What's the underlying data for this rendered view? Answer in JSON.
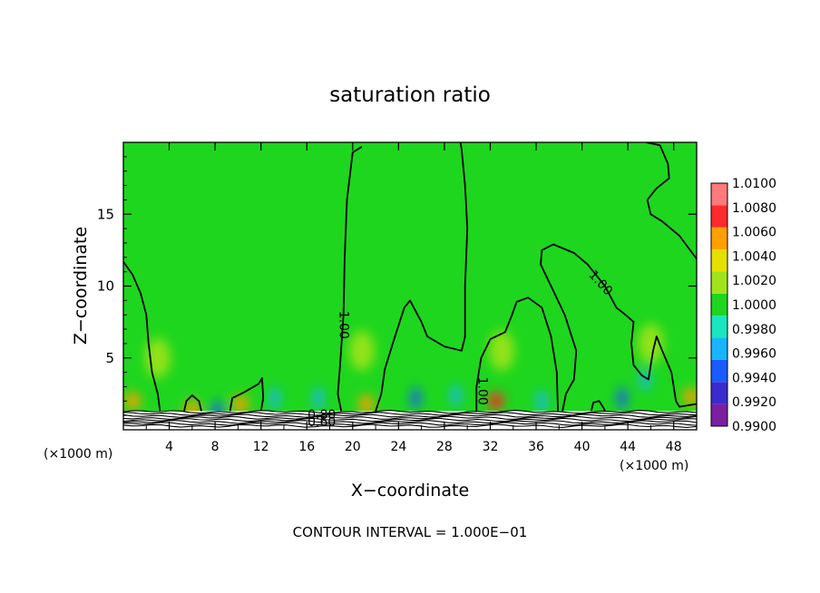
{
  "chart_data": {
    "type": "heatmap",
    "title": "saturation ratio",
    "xlabel": "X−coordinate",
    "ylabel": "Z−coordinate",
    "x_unit_left": "(×1000 m)",
    "x_unit_right": "(×1000 m)",
    "footer": "CONTOUR INTERVAL = 1.000E−01",
    "xlim": [
      0,
      50
    ],
    "ylim": [
      0,
      20
    ],
    "x_ticks": [
      4,
      8,
      12,
      16,
      20,
      24,
      28,
      32,
      36,
      40,
      44,
      48
    ],
    "x_tick_labels": [
      "4",
      "8",
      "12",
      "16",
      "20",
      "24",
      "28",
      "32",
      "36",
      "40",
      "44",
      "48"
    ],
    "y_ticks": [
      5,
      10,
      15
    ],
    "y_tick_labels": [
      "5",
      "10",
      "15"
    ],
    "colorbar": {
      "levels": [
        0.99,
        0.992,
        0.994,
        0.996,
        0.998,
        1.0,
        1.002,
        1.004,
        1.006,
        1.008,
        1.01
      ],
      "labels": [
        "0.9900",
        "0.9920",
        "0.9940",
        "0.9960",
        "0.9980",
        "1.0000",
        "1.0020",
        "1.0040",
        "1.0060",
        "1.0080",
        "1.0100"
      ],
      "colors": [
        "#7b1fa2",
        "#3a2bd0",
        "#1a5bff",
        "#17b5ff",
        "#19e6c0",
        "#1ed61e",
        "#9fe41a",
        "#e6e000",
        "#ffa000",
        "#ff2a2a",
        "#ff7a7a"
      ]
    },
    "contour_labels": [
      {
        "text": "1.00",
        "x": 19.2,
        "z": 7.3,
        "angle": 90
      },
      {
        "text": "1.00",
        "x": 31.3,
        "z": 2.7,
        "angle": 90
      },
      {
        "text": "1.00",
        "x": 41.6,
        "z": 10.2,
        "angle": 48
      },
      {
        "text": "0.80",
        "x": 17.3,
        "z": 1.0,
        "angle": 0
      },
      {
        "text": "0.60",
        "x": 17.3,
        "z": 0.5,
        "angle": 0
      }
    ],
    "hot_spots": [
      {
        "x": 0.8,
        "z": 2.0,
        "v": 1.007
      },
      {
        "x": 6.0,
        "z": 1.4,
        "v": 1.006
      },
      {
        "x": 10.2,
        "z": 1.8,
        "v": 1.006
      },
      {
        "x": 21.2,
        "z": 1.8,
        "v": 1.006
      },
      {
        "x": 32.5,
        "z": 2.0,
        "v": 1.008
      },
      {
        "x": 49.5,
        "z": 2.3,
        "v": 1.006
      },
      {
        "x": 3.0,
        "z": 5.0,
        "v": 1.003
      },
      {
        "x": 20.8,
        "z": 5.5,
        "v": 1.003
      },
      {
        "x": 46.0,
        "z": 6.0,
        "v": 1.002
      },
      {
        "x": 33.0,
        "z": 5.5,
        "v": 1.002
      }
    ],
    "cold_spots": [
      {
        "x": 8.2,
        "z": 1.3,
        "v": 0.9955
      },
      {
        "x": 13.2,
        "z": 2.2,
        "v": 0.996
      },
      {
        "x": 25.5,
        "z": 2.2,
        "v": 0.9955
      },
      {
        "x": 29.0,
        "z": 2.4,
        "v": 0.996
      },
      {
        "x": 43.5,
        "z": 2.2,
        "v": 0.9945
      },
      {
        "x": 36.5,
        "z": 2.0,
        "v": 0.9965
      },
      {
        "x": 17.0,
        "z": 2.2,
        "v": 0.997
      },
      {
        "x": 45.5,
        "z": 3.5,
        "v": 0.997
      }
    ],
    "contour_lines": [
      {
        "name": "left",
        "points": [
          [
            0,
            11.7
          ],
          [
            0.8,
            10.8
          ],
          [
            1.5,
            9.5
          ],
          [
            2.0,
            8.0
          ],
          [
            2.2,
            6.0
          ],
          [
            2.5,
            4.0
          ],
          [
            3.0,
            2.5
          ],
          [
            3.2,
            1.3
          ]
        ]
      },
      {
        "name": "bump6",
        "points": [
          [
            5.3,
            1.3
          ],
          [
            5.5,
            2.0
          ],
          [
            6.0,
            2.4
          ],
          [
            6.6,
            2.0
          ],
          [
            6.8,
            1.3
          ]
        ]
      },
      {
        "name": "bump10",
        "points": [
          [
            9.3,
            1.3
          ],
          [
            9.5,
            2.2
          ],
          [
            10.5,
            2.6
          ],
          [
            11.8,
            3.2
          ],
          [
            12.1,
            3.6
          ],
          [
            12.2,
            2.2
          ],
          [
            12.0,
            1.3
          ]
        ]
      },
      {
        "name": "tower",
        "points": [
          [
            19.0,
            1.3
          ],
          [
            18.7,
            2.5
          ],
          [
            18.9,
            4.5
          ],
          [
            19.2,
            8.0
          ],
          [
            19.3,
            12.0
          ],
          [
            19.5,
            16.0
          ],
          [
            20.0,
            19.3
          ],
          [
            20.8,
            19.7
          ]
        ]
      },
      {
        "name": "tower_return",
        "points": [
          [
            22.0,
            1.3
          ],
          [
            22.5,
            2.5
          ],
          [
            22.8,
            4.2
          ],
          [
            23.5,
            6.0
          ],
          [
            24.5,
            8.5
          ],
          [
            25.0,
            9.0
          ],
          [
            26.0,
            7.5
          ],
          [
            26.5,
            6.5
          ],
          [
            28.0,
            5.8
          ],
          [
            29.5,
            5.5
          ],
          [
            29.8,
            6.5
          ],
          [
            29.8,
            10.0
          ],
          [
            30.0,
            14.0
          ],
          [
            29.8,
            17.0
          ],
          [
            29.5,
            19.5
          ],
          [
            29.4,
            20.0
          ]
        ]
      },
      {
        "name": "loop32",
        "points": [
          [
            30.8,
            1.3
          ],
          [
            30.8,
            3.0
          ],
          [
            31.2,
            5.0
          ],
          [
            32.0,
            6.3
          ],
          [
            33.3,
            6.8
          ],
          [
            33.9,
            8.0
          ],
          [
            34.3,
            8.9
          ],
          [
            35.3,
            9.2
          ],
          [
            36.5,
            8.5
          ],
          [
            37.3,
            6.5
          ],
          [
            37.8,
            4.0
          ],
          [
            37.9,
            1.3
          ]
        ]
      },
      {
        "name": "arch",
        "points": [
          [
            38.3,
            1.3
          ],
          [
            38.6,
            2.5
          ],
          [
            39.3,
            3.5
          ],
          [
            39.5,
            5.5
          ],
          [
            38.5,
            8.0
          ],
          [
            37.3,
            10.0
          ],
          [
            36.4,
            11.5
          ],
          [
            36.5,
            12.5
          ],
          [
            37.5,
            12.9
          ],
          [
            39.3,
            12.3
          ],
          [
            40.5,
            11.5
          ],
          [
            42.0,
            10.0
          ],
          [
            43.0,
            8.5
          ],
          [
            43.8,
            8.0
          ],
          [
            44.5,
            7.5
          ],
          [
            44.3,
            6.0
          ],
          [
            44.5,
            4.5
          ],
          [
            45.2,
            3.8
          ],
          [
            45.8,
            3.5
          ],
          [
            46.0,
            4.5
          ],
          [
            46.2,
            5.5
          ],
          [
            46.5,
            6.5
          ],
          [
            47.0,
            5.5
          ],
          [
            47.8,
            4.0
          ],
          [
            48.0,
            3.0
          ],
          [
            48.2,
            2.0
          ],
          [
            48.5,
            1.6
          ],
          [
            50.0,
            1.8
          ]
        ]
      },
      {
        "name": "top_right",
        "points": [
          [
            45.6,
            20.0
          ],
          [
            46.8,
            19.8
          ],
          [
            47.5,
            18.5
          ],
          [
            47.6,
            17.5
          ],
          [
            46.5,
            16.8
          ],
          [
            45.7,
            16.0
          ],
          [
            46.0,
            15.0
          ],
          [
            47.0,
            14.5
          ],
          [
            48.5,
            13.5
          ],
          [
            50.0,
            11.9
          ]
        ]
      },
      {
        "name": "bump41",
        "points": [
          [
            40.8,
            1.3
          ],
          [
            41.0,
            1.9
          ],
          [
            41.5,
            2.0
          ],
          [
            41.9,
            1.5
          ],
          [
            42.0,
            1.3
          ]
        ]
      }
    ]
  }
}
